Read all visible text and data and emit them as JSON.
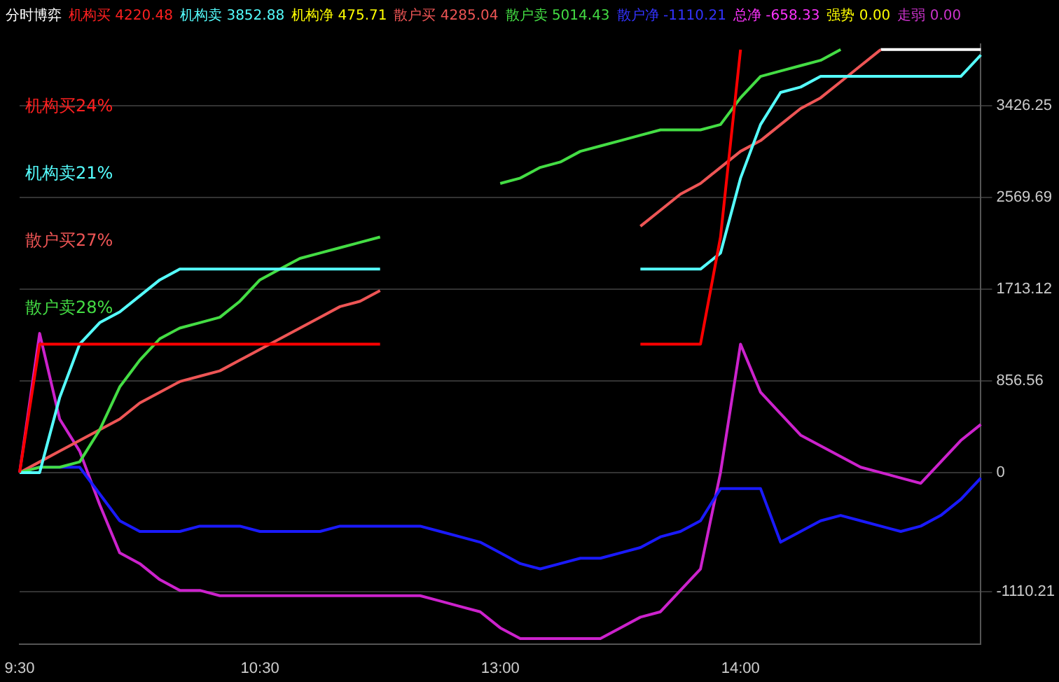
{
  "chart_data": {
    "type": "line",
    "title": "分时博弈",
    "annotations": [
      "机构买 4220.48",
      "机构卖 3852.88",
      "机构净 475.71",
      "散户买 4285.04",
      "散户卖 5014.43",
      "散户净 -1110.21",
      "总净 -658.33",
      "强势 0.00",
      "走弱 0.00",
      "机构买24%",
      "机构卖21%",
      "散户买27%",
      "散户卖28%"
    ],
    "categories": [
      "9:30",
      null,
      null,
      null,
      null,
      null,
      null,
      null,
      null,
      null,
      null,
      null,
      "10:30",
      null,
      null,
      null,
      null,
      null,
      null,
      null,
      null,
      null,
      null,
      null,
      "13:00",
      null,
      null,
      null,
      null,
      null,
      null,
      null,
      null,
      null,
      null,
      null,
      "14:00",
      null,
      null,
      null,
      null,
      null,
      null,
      null,
      null,
      null,
      null,
      null,
      null
    ],
    "ylim": [
      -1600,
      4000
    ],
    "yticks": [
      {
        "value": -1110.21,
        "label": "-1110.21"
      },
      0,
      856.56,
      1713.12,
      2569.69,
      3426.25
    ],
    "grid": "y",
    "legend": false,
    "marker": "none",
    "line_style": "solid",
    "series": [
      {
        "color": "#ff0000",
        "values": [
          0,
          1200,
          1200,
          1200,
          1200,
          1200,
          1200,
          1200,
          1200,
          1200,
          1200,
          1200,
          1200,
          1200,
          1200,
          1200,
          1200,
          1200,
          1200,
          null,
          null,
          null,
          null,
          null,
          null,
          null,
          null,
          null,
          null,
          null,
          null,
          1200,
          1200,
          1200,
          1200,
          2200,
          3950,
          null,
          null,
          null,
          null,
          null,
          null,
          null,
          null,
          null,
          null,
          null,
          null
        ]
      },
      {
        "color": "#55ffff",
        "values": [
          0,
          0,
          700,
          1200,
          1400,
          1500,
          1650,
          1800,
          1900,
          1900,
          1900,
          1900,
          1900,
          1900,
          1900,
          1900,
          1900,
          1900,
          1900,
          null,
          null,
          null,
          null,
          null,
          null,
          null,
          null,
          null,
          null,
          null,
          null,
          1900,
          1900,
          1900,
          1900,
          2050,
          2750,
          3250,
          3550,
          3600,
          3700,
          3700,
          3700,
          3700,
          3700,
          3700,
          3700,
          3700,
          3900
        ]
      },
      {
        "color": "#44dd44",
        "values": [
          0,
          50,
          50,
          100,
          400,
          800,
          1050,
          1250,
          1350,
          1400,
          1450,
          1600,
          1800,
          1900,
          2000,
          2050,
          2100,
          2150,
          2200,
          null,
          null,
          null,
          null,
          null,
          2700,
          2750,
          2850,
          2900,
          3000,
          3050,
          3100,
          3150,
          3200,
          3200,
          3200,
          3250,
          3500,
          3700,
          3750,
          3800,
          3850,
          3950,
          null,
          null,
          null,
          null,
          null,
          null,
          null
        ]
      },
      {
        "color": "#ee5555",
        "values": [
          0,
          100,
          200,
          300,
          400,
          500,
          650,
          750,
          850,
          900,
          950,
          1050,
          1150,
          1250,
          1350,
          1450,
          1550,
          1600,
          1700,
          null,
          null,
          null,
          null,
          null,
          null,
          null,
          null,
          null,
          null,
          null,
          null,
          2300,
          2450,
          2600,
          2700,
          2850,
          3000,
          3100,
          3250,
          3400,
          3500,
          3650,
          3800,
          3950,
          null,
          null,
          null,
          null,
          null
        ]
      },
      {
        "color": "#ffffff",
        "values": [
          null,
          null,
          null,
          null,
          null,
          null,
          null,
          null,
          null,
          null,
          null,
          null,
          null,
          null,
          null,
          null,
          null,
          null,
          null,
          null,
          null,
          null,
          null,
          null,
          null,
          null,
          null,
          null,
          null,
          null,
          null,
          null,
          null,
          null,
          null,
          null,
          null,
          null,
          null,
          null,
          null,
          null,
          null,
          3950,
          3950,
          3950,
          3950,
          3950,
          3950
        ]
      },
      {
        "color": "#1a1aff",
        "values": [
          0,
          50,
          50,
          50,
          -200,
          -450,
          -550,
          -550,
          -550,
          -500,
          -500,
          -500,
          -550,
          -550,
          -550,
          -550,
          -500,
          -500,
          -500,
          -500,
          -500,
          -550,
          -600,
          -650,
          -750,
          -850,
          -900,
          -850,
          -800,
          -800,
          -750,
          -700,
          -600,
          -550,
          -450,
          -150,
          -150,
          -150,
          -650,
          -550,
          -450,
          -400,
          -450,
          -500,
          -550,
          -500,
          -400,
          -250,
          -50
        ]
      },
      {
        "color": "#cc22cc",
        "values": [
          0,
          1300,
          500,
          200,
          -300,
          -750,
          -850,
          -1000,
          -1100,
          -1100,
          -1150,
          -1150,
          -1150,
          -1150,
          -1150,
          -1150,
          -1150,
          -1150,
          -1150,
          -1150,
          -1150,
          -1200,
          -1250,
          -1300,
          -1450,
          -1550,
          -1550,
          -1550,
          -1550,
          -1550,
          -1450,
          -1350,
          -1300,
          -1100,
          -900,
          0,
          1200,
          750,
          550,
          350,
          250,
          150,
          50,
          0,
          -50,
          -100,
          100,
          300,
          450
        ]
      }
    ]
  }
}
